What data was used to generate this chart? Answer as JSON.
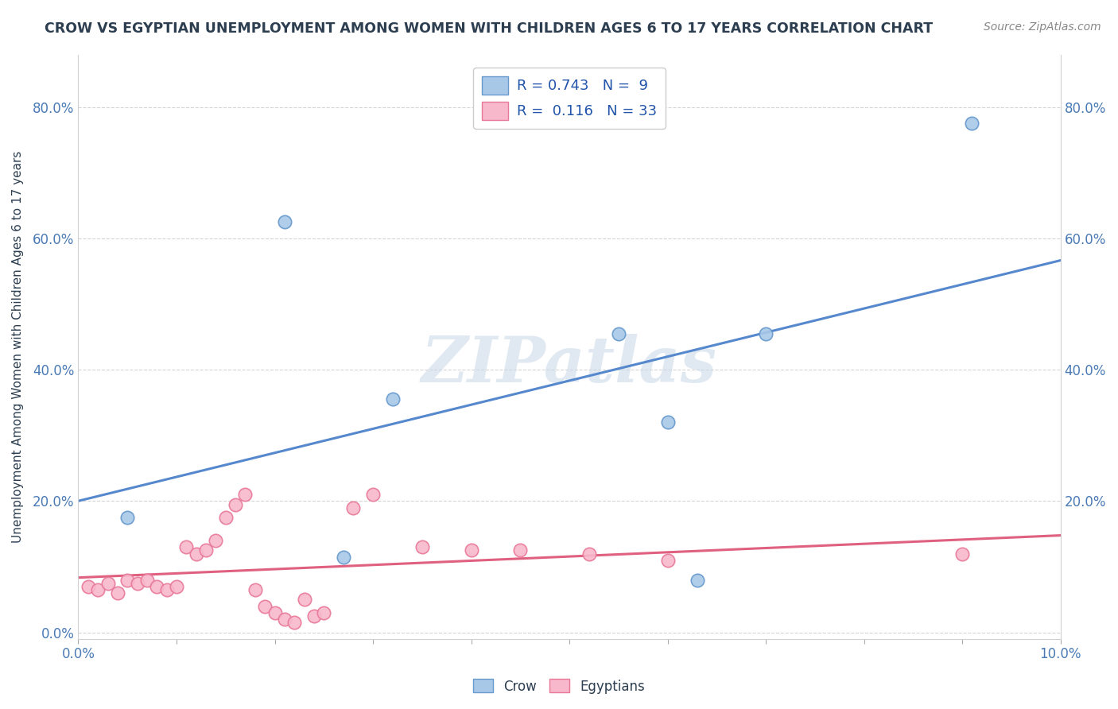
{
  "title": "CROW VS EGYPTIAN UNEMPLOYMENT AMONG WOMEN WITH CHILDREN AGES 6 TO 17 YEARS CORRELATION CHART",
  "source_text": "Source: ZipAtlas.com",
  "ylabel": "Unemployment Among Women with Children Ages 6 to 17 years",
  "xlim": [
    0.0,
    0.1
  ],
  "ylim": [
    -0.01,
    0.88
  ],
  "crow_color": "#a8c8e8",
  "egyptian_color": "#f8b8cc",
  "crow_edge_color": "#6699cc",
  "egyptian_edge_color": "#e87898",
  "crow_line_color": "#5588cc",
  "egyptian_line_color": "#e06080",
  "crow_R": 0.743,
  "crow_N": 9,
  "egyptian_R": 0.116,
  "egyptian_N": 33,
  "crow_scatter_x": [
    0.005,
    0.021,
    0.032,
    0.055,
    0.063,
    0.07,
    0.091,
    0.027,
    0.06
  ],
  "crow_scatter_y": [
    0.175,
    0.625,
    0.355,
    0.455,
    0.08,
    0.455,
    0.775,
    0.115,
    0.32
  ],
  "egyptian_scatter_x": [
    0.001,
    0.002,
    0.003,
    0.004,
    0.005,
    0.006,
    0.007,
    0.008,
    0.009,
    0.01,
    0.011,
    0.012,
    0.013,
    0.014,
    0.015,
    0.016,
    0.017,
    0.018,
    0.019,
    0.02,
    0.021,
    0.022,
    0.023,
    0.024,
    0.025,
    0.028,
    0.03,
    0.035,
    0.04,
    0.045,
    0.052,
    0.06,
    0.09
  ],
  "egyptian_scatter_y": [
    0.07,
    0.065,
    0.075,
    0.06,
    0.08,
    0.075,
    0.08,
    0.07,
    0.065,
    0.07,
    0.13,
    0.12,
    0.125,
    0.14,
    0.175,
    0.195,
    0.21,
    0.065,
    0.04,
    0.03,
    0.02,
    0.015,
    0.05,
    0.025,
    0.03,
    0.19,
    0.21,
    0.13,
    0.125,
    0.125,
    0.12,
    0.11,
    0.12
  ],
  "watermark_text": "ZIPatlas",
  "background_color": "#ffffff",
  "title_color": "#2c3e50",
  "axis_label_color": "#4a7ab5",
  "legend_text_color": "#2255aa",
  "grid_color": "#d0d0d0",
  "yticks": [
    0.0,
    0.2,
    0.4,
    0.6,
    0.8
  ],
  "xtick_show": [
    0.0,
    0.1
  ]
}
